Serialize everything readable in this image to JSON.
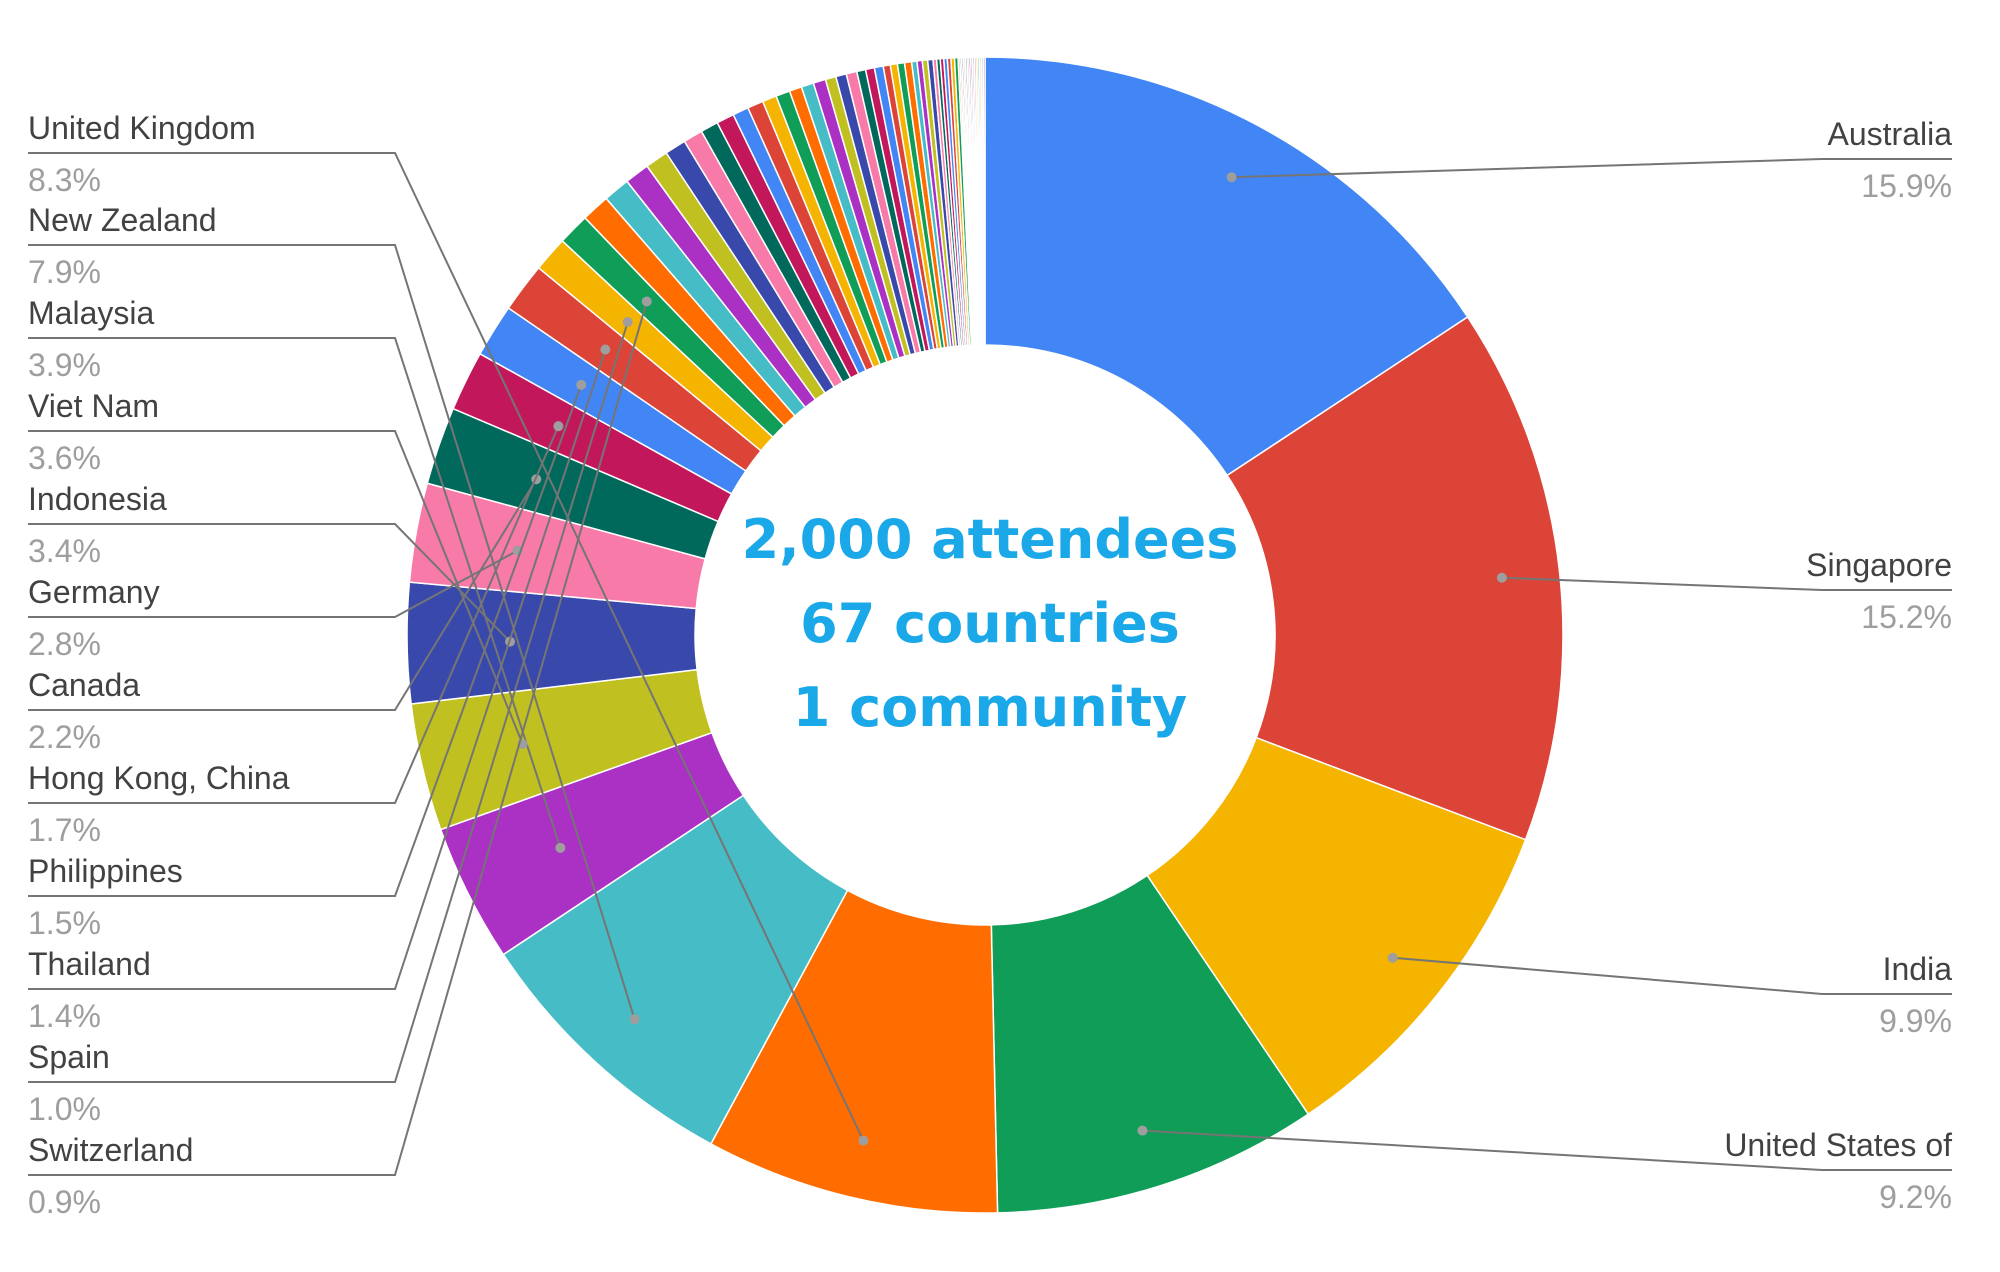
{
  "chart_data": {
    "type": "pie",
    "donut": true,
    "center_text": [
      "2,000 attendees",
      "67 countries",
      "1 community"
    ],
    "center_text_color": "#1AA8E8",
    "slices": [
      {
        "label": "Australia",
        "value": 15.9,
        "pct_label": "15.9%",
        "color": "#4285F4",
        "labeled": true
      },
      {
        "label": "Singapore",
        "value": 15.2,
        "pct_label": "15.2%",
        "color": "#DB4437",
        "labeled": true
      },
      {
        "label": "India",
        "value": 9.9,
        "pct_label": "9.9%",
        "color": "#F4B400",
        "labeled": true
      },
      {
        "label": "United States of",
        "value": 9.2,
        "pct_label": "9.2%",
        "color": "#0F9D58",
        "labeled": true
      },
      {
        "label": "United Kingdom",
        "value": 8.3,
        "pct_label": "8.3%",
        "color": "#FF6D00",
        "labeled": true
      },
      {
        "label": "New Zealand",
        "value": 7.9,
        "pct_label": "7.9%",
        "color": "#46BDC6",
        "labeled": true
      },
      {
        "label": "Malaysia",
        "value": 3.9,
        "pct_label": "3.9%",
        "color": "#AB30C4",
        "labeled": true
      },
      {
        "label": "Viet Nam",
        "value": 3.6,
        "pct_label": "3.6%",
        "color": "#C0C020",
        "labeled": true
      },
      {
        "label": "Indonesia",
        "value": 3.4,
        "pct_label": "3.4%",
        "color": "#3949AB",
        "labeled": true
      },
      {
        "label": "Germany",
        "value": 2.8,
        "pct_label": "2.8%",
        "color": "#F87AA8",
        "labeled": true
      },
      {
        "label": "Canada",
        "value": 2.2,
        "pct_label": "2.2%",
        "color": "#00695C",
        "labeled": true
      },
      {
        "label": "Hong Kong, China",
        "value": 1.7,
        "pct_label": "1.7%",
        "color": "#C2185B",
        "labeled": true
      },
      {
        "label": "Philippines",
        "value": 1.5,
        "pct_label": "1.5%",
        "color": "#4285F4",
        "labeled": true
      },
      {
        "label": "Thailand",
        "value": 1.4,
        "pct_label": "1.4%",
        "color": "#DB4437",
        "labeled": true
      },
      {
        "label": "Spain",
        "value": 1.0,
        "pct_label": "1.0%",
        "color": "#F4B400",
        "labeled": true
      },
      {
        "label": "Switzerland",
        "value": 0.9,
        "pct_label": "0.9%",
        "color": "#0F9D58",
        "labeled": true
      },
      {
        "label": "",
        "value": 0.8,
        "color": "#FF6D00",
        "labeled": false
      },
      {
        "label": "",
        "value": 0.75,
        "color": "#46BDC6",
        "labeled": false
      },
      {
        "label": "",
        "value": 0.7,
        "color": "#AB30C4",
        "labeled": false
      },
      {
        "label": "",
        "value": 0.65,
        "color": "#C0C020",
        "labeled": false
      },
      {
        "label": "",
        "value": 0.6,
        "color": "#3949AB",
        "labeled": false
      },
      {
        "label": "",
        "value": 0.55,
        "color": "#F87AA8",
        "labeled": false
      },
      {
        "label": "",
        "value": 0.5,
        "color": "#00695C",
        "labeled": false
      },
      {
        "label": "",
        "value": 0.5,
        "color": "#C2185B",
        "labeled": false
      },
      {
        "label": "",
        "value": 0.45,
        "color": "#4285F4",
        "labeled": false
      },
      {
        "label": "",
        "value": 0.45,
        "color": "#DB4437",
        "labeled": false
      },
      {
        "label": "",
        "value": 0.4,
        "color": "#F4B400",
        "labeled": false
      },
      {
        "label": "",
        "value": 0.4,
        "color": "#0F9D58",
        "labeled": false
      },
      {
        "label": "",
        "value": 0.35,
        "color": "#FF6D00",
        "labeled": false
      },
      {
        "label": "",
        "value": 0.35,
        "color": "#46BDC6",
        "labeled": false
      },
      {
        "label": "",
        "value": 0.35,
        "color": "#AB30C4",
        "labeled": false
      },
      {
        "label": "",
        "value": 0.3,
        "color": "#C0C020",
        "labeled": false
      },
      {
        "label": "",
        "value": 0.3,
        "color": "#3949AB",
        "labeled": false
      },
      {
        "label": "",
        "value": 0.3,
        "color": "#F87AA8",
        "labeled": false
      },
      {
        "label": "",
        "value": 0.25,
        "color": "#00695C",
        "labeled": false
      },
      {
        "label": "",
        "value": 0.25,
        "color": "#C2185B",
        "labeled": false
      },
      {
        "label": "",
        "value": 0.25,
        "color": "#4285F4",
        "labeled": false
      },
      {
        "label": "",
        "value": 0.2,
        "color": "#DB4437",
        "labeled": false
      },
      {
        "label": "",
        "value": 0.2,
        "color": "#F4B400",
        "labeled": false
      },
      {
        "label": "",
        "value": 0.2,
        "color": "#0F9D58",
        "labeled": false
      },
      {
        "label": "",
        "value": 0.2,
        "color": "#FF6D00",
        "labeled": false
      },
      {
        "label": "",
        "value": 0.15,
        "color": "#46BDC6",
        "labeled": false
      },
      {
        "label": "",
        "value": 0.15,
        "color": "#AB30C4",
        "labeled": false
      },
      {
        "label": "",
        "value": 0.15,
        "color": "#C0C020",
        "labeled": false
      },
      {
        "label": "",
        "value": 0.15,
        "color": "#3949AB",
        "labeled": false
      },
      {
        "label": "",
        "value": 0.1,
        "color": "#F87AA8",
        "labeled": false
      },
      {
        "label": "",
        "value": 0.1,
        "color": "#00695C",
        "labeled": false
      },
      {
        "label": "",
        "value": 0.1,
        "color": "#C2185B",
        "labeled": false
      },
      {
        "label": "",
        "value": 0.1,
        "color": "#4285F4",
        "labeled": false
      },
      {
        "label": "",
        "value": 0.1,
        "color": "#DB4437",
        "labeled": false
      },
      {
        "label": "",
        "value": 0.1,
        "color": "#F4B400",
        "labeled": false
      },
      {
        "label": "",
        "value": 0.1,
        "color": "#0F9D58",
        "labeled": false
      },
      {
        "label": "",
        "value": 0.05,
        "color": "#FF6D00",
        "labeled": false
      },
      {
        "label": "",
        "value": 0.05,
        "color": "#46BDC6",
        "labeled": false
      },
      {
        "label": "",
        "value": 0.05,
        "color": "#AB30C4",
        "labeled": false
      },
      {
        "label": "",
        "value": 0.05,
        "color": "#C0C020",
        "labeled": false
      },
      {
        "label": "",
        "value": 0.05,
        "color": "#3949AB",
        "labeled": false
      },
      {
        "label": "",
        "value": 0.05,
        "color": "#F87AA8",
        "labeled": false
      },
      {
        "label": "",
        "value": 0.05,
        "color": "#00695C",
        "labeled": false
      },
      {
        "label": "",
        "value": 0.05,
        "color": "#C2185B",
        "labeled": false
      },
      {
        "label": "",
        "value": 0.05,
        "color": "#4285F4",
        "labeled": false
      },
      {
        "label": "",
        "value": 0.05,
        "color": "#DB4437",
        "labeled": false
      },
      {
        "label": "",
        "value": 0.05,
        "color": "#F4B400",
        "labeled": false
      },
      {
        "label": "",
        "value": 0.05,
        "color": "#0F9D58",
        "labeled": false
      },
      {
        "label": "",
        "value": 0.05,
        "color": "#FF6D00",
        "labeled": false
      },
      {
        "label": "",
        "value": 0.05,
        "color": "#46BDC6",
        "labeled": false
      },
      {
        "label": "",
        "value": 0.05,
        "color": "#AB30C4",
        "labeled": false
      }
    ]
  }
}
